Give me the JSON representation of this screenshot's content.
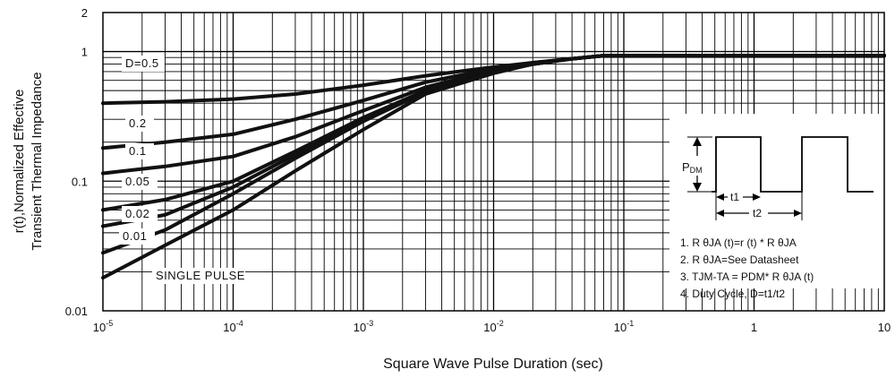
{
  "chart_data": {
    "type": "line",
    "xlabel": "Square Wave Pulse Duration (sec)",
    "ylabel_line1": "r(t),Normalized Effective",
    "ylabel_line2": "Transient Thermal Impedance",
    "x_scale": "log",
    "y_scale": "log",
    "xlim": [
      1e-05,
      10
    ],
    "ylim": [
      0.01,
      2
    ],
    "grid": true,
    "x_ticks": [
      {
        "value": 1e-05,
        "base": "10",
        "exp": "-5"
      },
      {
        "value": 0.0001,
        "base": "10",
        "exp": "-4"
      },
      {
        "value": 0.001,
        "base": "10",
        "exp": "-3"
      },
      {
        "value": 0.01,
        "base": "10",
        "exp": "-2"
      },
      {
        "value": 0.1,
        "base": "10",
        "exp": "-1"
      },
      {
        "value": 1,
        "base": "1",
        "exp": ""
      },
      {
        "value": 10,
        "base": "10",
        "exp": ""
      }
    ],
    "y_ticks": [
      {
        "value": 2,
        "label": "2"
      },
      {
        "value": 1,
        "label": "1"
      },
      {
        "value": 0.1,
        "label": "0.1"
      },
      {
        "value": 0.01,
        "label": "0.01"
      }
    ],
    "series": [
      {
        "name": "D=0.5",
        "x": [
          1e-05,
          3e-05,
          0.0001,
          0.0003,
          0.001,
          0.003,
          0.01,
          0.02,
          0.04,
          0.07,
          0.1,
          1,
          10
        ],
        "y": [
          0.4,
          0.41,
          0.43,
          0.47,
          0.55,
          0.65,
          0.76,
          0.82,
          0.88,
          0.93,
          0.93,
          0.93,
          0.93
        ]
      },
      {
        "name": "0.2",
        "x": [
          1e-05,
          3e-05,
          0.0001,
          0.0003,
          0.001,
          0.003,
          0.01,
          0.02,
          0.04,
          0.07,
          0.1,
          1,
          10
        ],
        "y": [
          0.18,
          0.2,
          0.23,
          0.3,
          0.42,
          0.58,
          0.74,
          0.82,
          0.88,
          0.93,
          0.93,
          0.93,
          0.93
        ]
      },
      {
        "name": "0.1",
        "x": [
          1e-05,
          3e-05,
          0.0001,
          0.0003,
          0.001,
          0.003,
          0.01,
          0.02,
          0.04,
          0.07,
          0.1,
          1,
          10
        ],
        "y": [
          0.115,
          0.13,
          0.155,
          0.22,
          0.35,
          0.53,
          0.72,
          0.81,
          0.88,
          0.93,
          0.93,
          0.93,
          0.93
        ]
      },
      {
        "name": "0.05",
        "x": [
          1e-05,
          3e-05,
          0.0001,
          0.0003,
          0.001,
          0.003,
          0.01,
          0.02,
          0.04,
          0.07,
          0.1,
          1,
          10
        ],
        "y": [
          0.06,
          0.072,
          0.1,
          0.17,
          0.31,
          0.5,
          0.71,
          0.8,
          0.88,
          0.93,
          0.93,
          0.93,
          0.93
        ]
      },
      {
        "name": "0.02",
        "x": [
          1e-05,
          3e-05,
          0.0001,
          0.0003,
          0.001,
          0.003,
          0.01,
          0.02,
          0.04,
          0.07,
          0.1,
          1,
          10
        ],
        "y": [
          0.045,
          0.055,
          0.09,
          0.16,
          0.3,
          0.5,
          0.7,
          0.8,
          0.88,
          0.93,
          0.93,
          0.93,
          0.93
        ]
      },
      {
        "name": "0.01",
        "x": [
          1e-05,
          3e-05,
          0.0001,
          0.0003,
          0.001,
          0.003,
          0.01,
          0.02,
          0.04,
          0.07,
          0.1,
          1,
          10
        ],
        "y": [
          0.028,
          0.042,
          0.08,
          0.15,
          0.29,
          0.49,
          0.69,
          0.8,
          0.88,
          0.93,
          0.93,
          0.93,
          0.93
        ]
      },
      {
        "name": "SINGLE PULSE",
        "x": [
          1e-05,
          3e-05,
          0.0001,
          0.0003,
          0.001,
          0.003,
          0.01,
          0.02,
          0.04,
          0.07,
          0.1,
          1,
          10
        ],
        "y": [
          0.018,
          0.032,
          0.06,
          0.12,
          0.25,
          0.47,
          0.68,
          0.8,
          0.88,
          0.93,
          0.93,
          0.93,
          0.93
        ]
      }
    ],
    "inset": {
      "pdm_label": "P",
      "pdm_sub": "DM",
      "t1_label": "t1",
      "t2_label": "t2",
      "notes": [
        "1. R θJA (t)=r (t) * R θJA",
        "2. R θJA=See Datasheet",
        "3. TJM-TA = PDM* R θJA (t)",
        "4. Duty Cycle, D=t1/t2"
      ]
    }
  }
}
